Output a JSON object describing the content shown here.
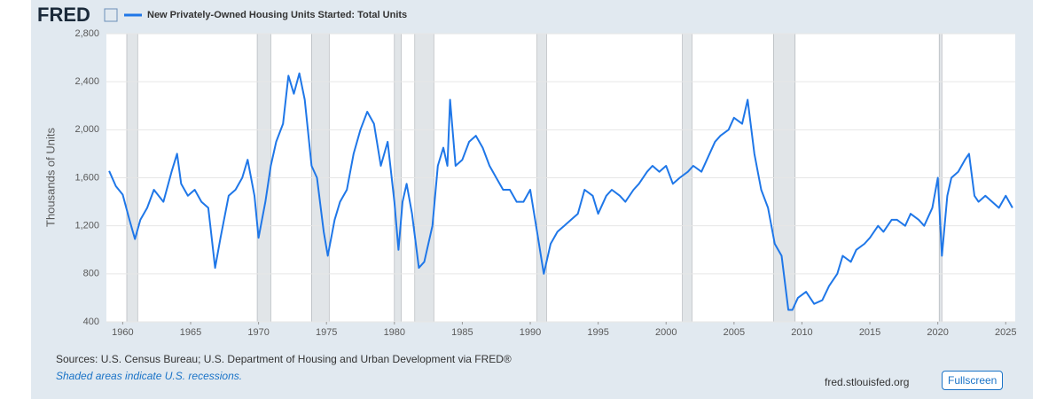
{
  "logo": "FRED",
  "chart_data": {
    "type": "line",
    "series": [
      {
        "name": "New Privately-Owned Housing Units Started: Total Units",
        "color": "#1f77e8",
        "values": [
          1657,
          1530,
          1460,
          1250,
          1090,
          1250,
          1350,
          1500,
          1400,
          1650,
          1800,
          1550,
          1450,
          1500,
          1400,
          1350,
          850,
          1100,
          1450,
          1500,
          1600,
          1750,
          1450,
          1100,
          1400,
          1700,
          1900,
          2050,
          2450,
          2300,
          2470,
          2250,
          1700,
          1600,
          1150,
          950,
          1250,
          1400,
          1500,
          1800,
          2000,
          2150,
          2050,
          1700,
          1900,
          1400,
          1000,
          1400,
          1550,
          1300,
          850,
          900,
          1200,
          1700,
          1850,
          1700,
          2250,
          1700,
          1750,
          1900,
          1950,
          1850,
          1700,
          1600,
          1500,
          1500,
          1400,
          1400,
          1500,
          1150,
          800,
          1050,
          1150,
          1200,
          1250,
          1300,
          1500,
          1450,
          1300,
          1450,
          1500,
          1450,
          1400,
          1500,
          1550,
          1650,
          1700,
          1650,
          1700,
          1550,
          1600,
          1650,
          1700,
          1650,
          1750,
          1900,
          1950,
          2000,
          2100,
          2050,
          2250,
          1800,
          1500,
          1350,
          1050,
          950,
          500,
          500,
          600,
          650,
          550,
          580,
          700,
          800,
          950,
          900,
          1000,
          1050,
          1100,
          1200,
          1150,
          1250,
          1250,
          1200,
          1300,
          1250,
          1200,
          1350,
          1600,
          950,
          1450,
          1600,
          1650,
          1750,
          1800,
          1450,
          1400,
          1450,
          1400,
          1350,
          1450,
          1350
        ]
      }
    ],
    "x": [
      1959.0,
      1959.5,
      1960.0,
      1960.5,
      1960.9,
      1961.3,
      1961.8,
      1962.3,
      1963.0,
      1963.6,
      1964.0,
      1964.3,
      1964.8,
      1965.3,
      1965.8,
      1966.3,
      1966.8,
      1967.2,
      1967.8,
      1968.3,
      1968.8,
      1969.2,
      1969.7,
      1970.0,
      1970.5,
      1970.9,
      1971.3,
      1971.8,
      1972.2,
      1972.6,
      1973.0,
      1973.4,
      1973.9,
      1974.3,
      1974.8,
      1975.1,
      1975.6,
      1976.0,
      1976.5,
      1977.0,
      1977.5,
      1978.0,
      1978.5,
      1979.0,
      1979.5,
      1980.0,
      1980.3,
      1980.6,
      1980.9,
      1981.3,
      1981.8,
      1982.2,
      1982.8,
      1983.2,
      1983.6,
      1983.9,
      1984.1,
      1984.5,
      1985.0,
      1985.5,
      1986.0,
      1986.5,
      1987.0,
      1987.5,
      1988.0,
      1988.5,
      1989.0,
      1989.5,
      1990.0,
      1990.5,
      1991.0,
      1991.5,
      1992.0,
      1992.5,
      1993.0,
      1993.5,
      1994.0,
      1994.6,
      1995.0,
      1995.6,
      1996.0,
      1996.6,
      1997.0,
      1997.6,
      1998.0,
      1998.6,
      1999.0,
      1999.5,
      2000.0,
      2000.5,
      2001.0,
      2001.6,
      2002.0,
      2002.6,
      2003.0,
      2003.6,
      2004.0,
      2004.6,
      2005.0,
      2005.6,
      2006.0,
      2006.5,
      2007.0,
      2007.5,
      2008.0,
      2008.5,
      2009.0,
      2009.3,
      2009.7,
      2010.3,
      2010.9,
      2011.5,
      2012.0,
      2012.6,
      2013.0,
      2013.6,
      2014.0,
      2014.6,
      2015.0,
      2015.6,
      2016.0,
      2016.6,
      2017.0,
      2017.6,
      2018.0,
      2018.6,
      2019.0,
      2019.6,
      2020.0,
      2020.3,
      2020.7,
      2021.0,
      2021.5,
      2022.0,
      2022.3,
      2022.7,
      2023.0,
      2023.5,
      2024.0,
      2024.5,
      2025.0,
      2025.5
    ],
    "recessions": [
      [
        1960.3,
        1961.1
      ],
      [
        1969.9,
        1970.9
      ],
      [
        1973.9,
        1975.2
      ],
      [
        1980.0,
        1980.5
      ],
      [
        1981.5,
        1982.9
      ],
      [
        1990.5,
        1991.2
      ],
      [
        2001.2,
        2001.9
      ],
      [
        2007.9,
        2009.5
      ],
      [
        2020.1,
        2020.3
      ]
    ],
    "xlim": [
      1958.8,
      2025.7
    ],
    "xticks": [
      1960,
      1965,
      1970,
      1975,
      1980,
      1985,
      1990,
      1995,
      2000,
      2005,
      2010,
      2015,
      2020,
      2025
    ],
    "ylim": [
      400,
      2800
    ],
    "yticks": [
      400,
      800,
      {
        "value": 1200,
        "label": "1,200"
      },
      {
        "value": 1600,
        "label": "1,600"
      },
      {
        "value": 2000,
        "label": "2,000"
      },
      {
        "value": 2400,
        "label": "2,400"
      },
      {
        "value": 2800,
        "label": "2,800"
      }
    ],
    "ylabel": "Thousands of Units",
    "grid": true
  },
  "footer": {
    "sources": "Sources: U.S. Census Bureau; U.S. Department of Housing and Urban Development via FRED®",
    "note": "Shaded areas indicate U.S. recessions.",
    "site": "fred.stlouisfed.org",
    "button": "Fullscreen"
  }
}
